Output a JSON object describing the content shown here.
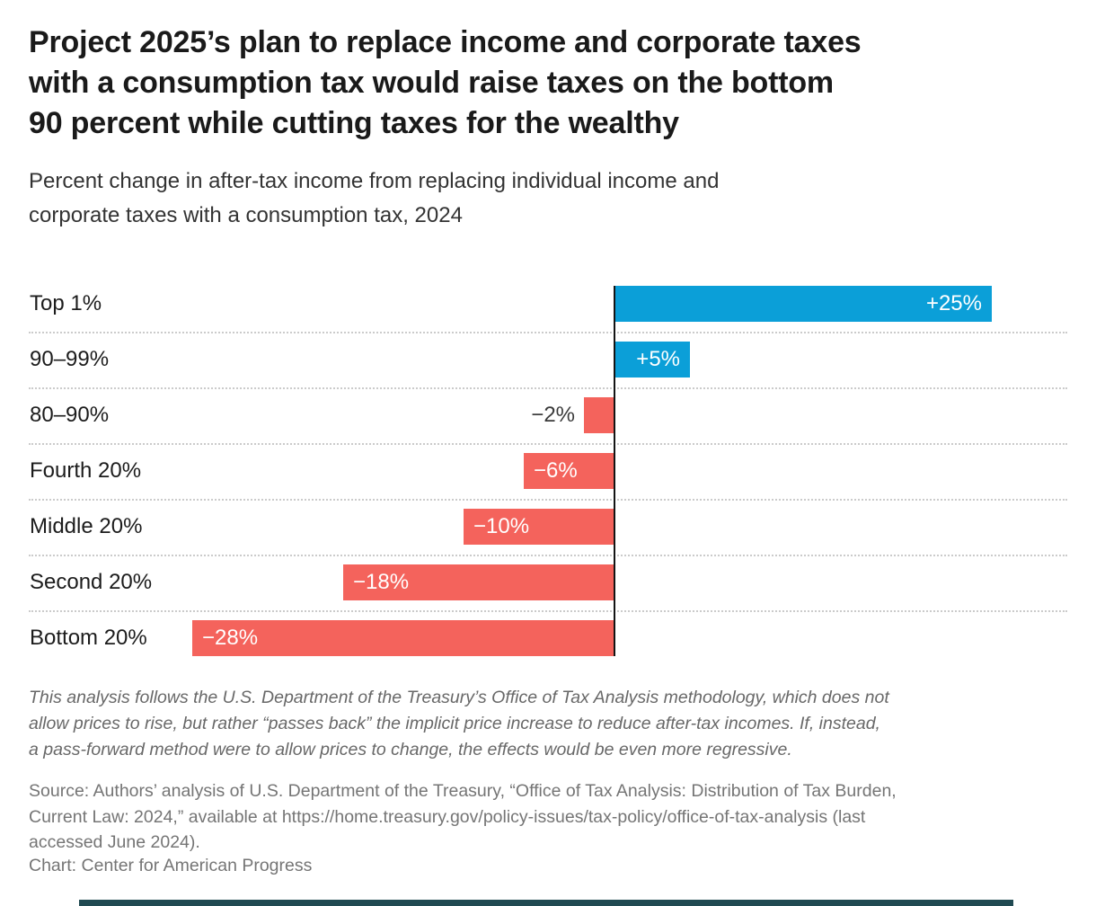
{
  "header": {
    "title_lines": [
      "Project 2025’s plan to replace income and corporate taxes",
      "with a consumption tax would raise taxes on the bottom",
      "90 percent while cutting taxes for the wealthy"
    ],
    "subtitle_lines": [
      "Percent change in after-tax income from replacing individual income and",
      "corporate taxes with a consumption tax, 2024"
    ]
  },
  "chart_data": {
    "type": "bar",
    "orientation": "horizontal",
    "title": "Project 2025’s plan to replace income and corporate taxes with a consumption tax would raise taxes on the bottom 90 percent while cutting taxes for the wealthy",
    "subtitle": "Percent change in after-tax income from replacing individual income and corporate taxes with a consumption tax, 2024",
    "categories": [
      "Top 1%",
      "90–99%",
      "80–90%",
      "Fourth 20%",
      "Middle 20%",
      "Second 20%",
      "Bottom 20%"
    ],
    "values": [
      25,
      5,
      -2,
      -6,
      -10,
      -18,
      -28
    ],
    "value_labels": [
      "+25%",
      "+5%",
      "−2%",
      "−6%",
      "−10%",
      "−18%",
      "−28%"
    ],
    "xlim": [
      -28,
      30
    ],
    "grid": "dotted-row-separators",
    "legend": "none",
    "colors": {
      "positive": "#0b9fd8",
      "negative": "#f4635c",
      "axis": "#141414",
      "separator": "#cbcbcb"
    }
  },
  "footer": {
    "notes_lines": [
      "This analysis follows the U.S. Department of the Treasury’s Office of Tax Analysis methodology, which does not",
      "allow prices to rise, but rather “passes back” the implicit price increase to reduce after-tax incomes. If, instead,",
      "a pass-forward method were to allow prices to change, the effects would be even more regressive."
    ],
    "source_lines": [
      "Source: Authors’ analysis of U.S. Department of the Treasury, “Office of Tax Analysis: Distribution of Tax Burden,",
      "Current Law: 2024,” available at https://home.treasury.gov/policy-issues/tax-policy/office-of-tax-analysis (last",
      "accessed June 2024)."
    ],
    "credit": "Chart: Center for American Progress"
  },
  "colors": {
    "brand_bar": "#204a52"
  }
}
